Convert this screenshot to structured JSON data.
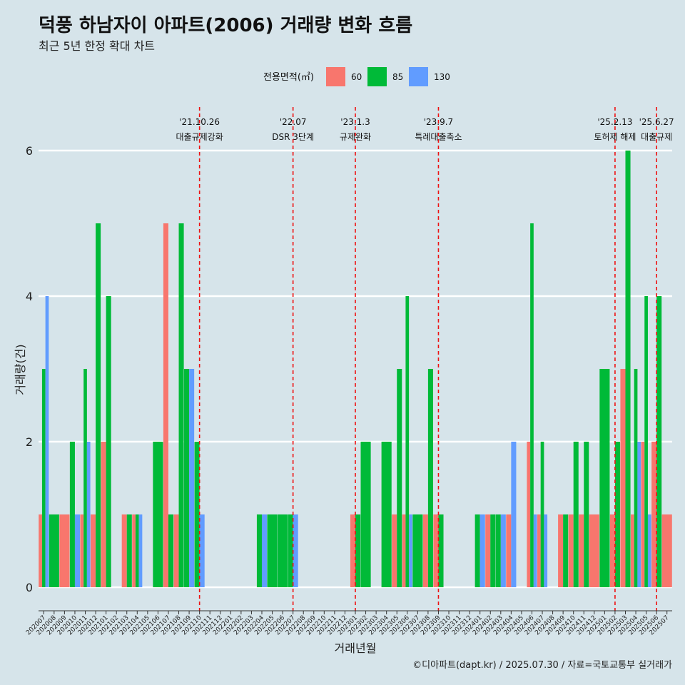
{
  "chart_data": {
    "type": "bar",
    "title": "덕풍 하남자이 아파트(2006) 거래량 변화 흐름",
    "subtitle": "최근 5년 한정 확대 차트",
    "xlabel": "거래년월",
    "ylabel": "거래량(건)",
    "ylim": [
      0,
      6
    ],
    "yticks": [
      "0",
      "2",
      "4",
      "6"
    ],
    "grid": true,
    "legend": {
      "title": "전용면적(㎡)",
      "position": "top"
    },
    "categories": [
      "202007",
      "202008",
      "202009",
      "202010",
      "202011",
      "202012",
      "202101",
      "202102",
      "202103",
      "202104",
      "202105",
      "202106",
      "202107",
      "202108",
      "202109",
      "202110",
      "202111",
      "202112",
      "202201",
      "202202",
      "202203",
      "202204",
      "202205",
      "202206",
      "202207",
      "202208",
      "202209",
      "202210",
      "202211",
      "202212",
      "202301",
      "202302",
      "202303",
      "202304",
      "202305",
      "202306",
      "202307",
      "202308",
      "202309",
      "202310",
      "202311",
      "202312",
      "202401",
      "202402",
      "202403",
      "202404",
      "202405",
      "202406",
      "202407",
      "202408",
      "202409",
      "202410",
      "202411",
      "202412",
      "202501",
      "202502",
      "202503",
      "202504",
      "202505",
      "202506",
      "202507"
    ],
    "series": [
      {
        "name": "60",
        "color": "#f8766d",
        "values": [
          1,
          0,
          1,
          0,
          1,
          1,
          2,
          0,
          1,
          1,
          0,
          0,
          5,
          1,
          0,
          0,
          0,
          0,
          0,
          0,
          0,
          0,
          0,
          0,
          0,
          0,
          0,
          0,
          0,
          0,
          1,
          0,
          0,
          0,
          1,
          1,
          0,
          1,
          1,
          0,
          0,
          0,
          0,
          1,
          0,
          1,
          0,
          2,
          1,
          0,
          1,
          1,
          1,
          1,
          0,
          1,
          3,
          1,
          2,
          2,
          1
        ]
      },
      {
        "name": "85",
        "color": "#00ba38",
        "values": [
          3,
          1,
          0,
          2,
          3,
          5,
          4,
          0,
          1,
          1,
          0,
          2,
          1,
          5,
          3,
          2,
          0,
          0,
          0,
          0,
          0,
          1,
          1,
          1,
          1,
          0,
          0,
          0,
          0,
          0,
          1,
          2,
          0,
          2,
          3,
          4,
          1,
          3,
          1,
          0,
          0,
          0,
          1,
          1,
          1,
          0,
          0,
          5,
          2,
          0,
          1,
          2,
          2,
          0,
          3,
          2,
          6,
          3,
          4,
          4,
          0
        ]
      },
      {
        "name": "130",
        "color": "#619cff",
        "values": [
          4,
          0,
          0,
          1,
          2,
          0,
          0,
          0,
          0,
          1,
          0,
          0,
          0,
          0,
          3,
          1,
          0,
          0,
          0,
          0,
          0,
          1,
          0,
          0,
          1,
          0,
          0,
          0,
          0,
          0,
          0,
          0,
          0,
          0,
          0,
          1,
          0,
          0,
          0,
          0,
          0,
          0,
          1,
          0,
          1,
          2,
          0,
          1,
          1,
          0,
          0,
          0,
          0,
          0,
          0,
          0,
          0,
          2,
          1,
          0,
          0
        ]
      }
    ],
    "events": [
      {
        "date": "'21.10.26",
        "label": "대출규제강화",
        "x": "202110"
      },
      {
        "date": "'22.07",
        "label": "DSR 3단계",
        "x": "202207"
      },
      {
        "date": "'23.1.3",
        "label": "규제완화",
        "x": "202301"
      },
      {
        "date": "'23.9.7",
        "label": "특례대출축소",
        "x": "202309"
      },
      {
        "date": "'25.2.13",
        "label": "토허제 해제",
        "x": "202502"
      },
      {
        "date": "'25.6.27",
        "label": "대출규제",
        "x": "202506"
      }
    ]
  },
  "caption": "©디아파트(dapt.kr) / 2025.07.30 / 자료=국토교통부 실거래가"
}
